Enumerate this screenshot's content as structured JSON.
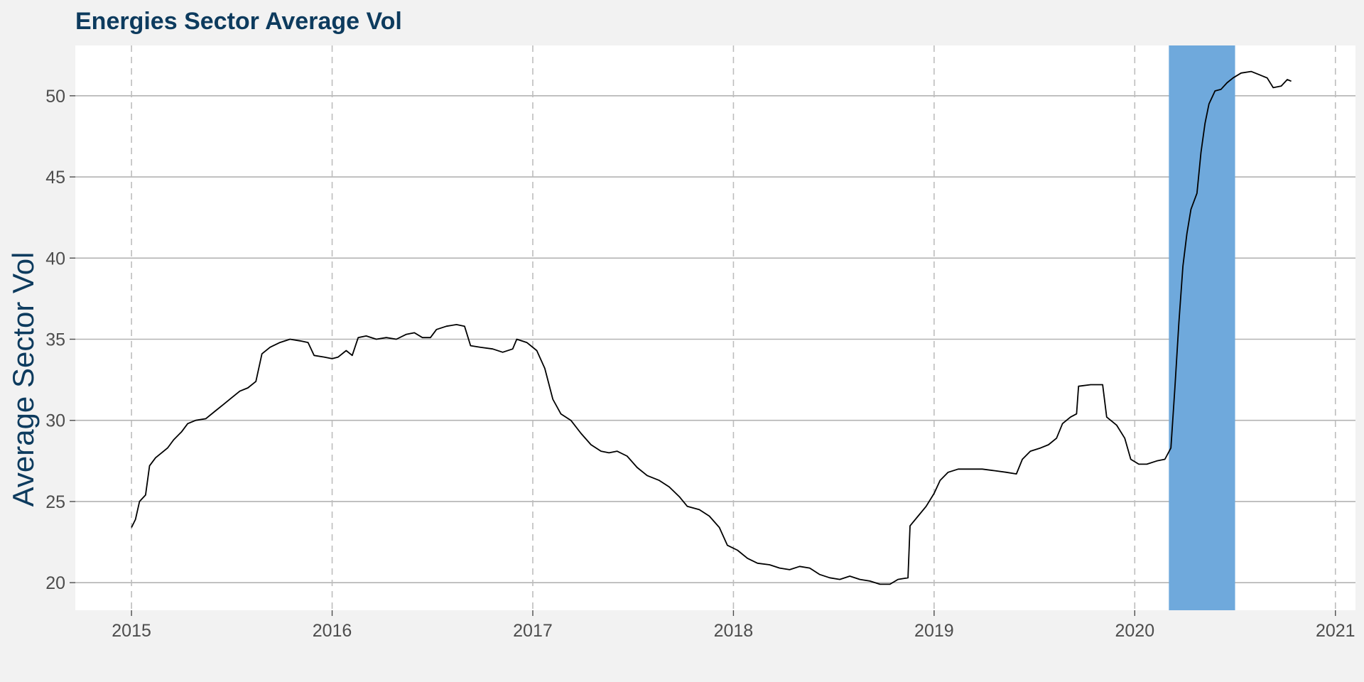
{
  "chart_data": {
    "type": "line",
    "title": "Energies Sector Average Vol",
    "xlabel": "",
    "ylabel": "Average Sector Vol",
    "xlim": [
      2014.72,
      2021.1
    ],
    "ylim": [
      18.3,
      53.1
    ],
    "x_ticks": [
      2015,
      2016,
      2017,
      2018,
      2019,
      2020,
      2021
    ],
    "x_tick_labels": [
      "2015",
      "2016",
      "2017",
      "2018",
      "2019",
      "2020",
      "2021"
    ],
    "y_ticks": [
      20,
      25,
      30,
      35,
      40,
      45,
      50
    ],
    "y_tick_labels": [
      "20",
      "25",
      "30",
      "35",
      "40",
      "45",
      "50"
    ],
    "grid": true,
    "highlight_band": {
      "x_start": 2020.17,
      "x_end": 2020.5,
      "color": "#6fa9dc"
    },
    "colors": {
      "title": "#0d3b5e",
      "ylabel": "#0d3b5e",
      "line": "#000000",
      "panel_background": "#ffffff",
      "plot_background": "#f2f2f2",
      "grid_major_y": "#b3b3b3",
      "grid_major_x": "#bdbdbd"
    },
    "series": [
      {
        "values": [
          [
            2015.0,
            23.4
          ],
          [
            2015.02,
            23.9
          ],
          [
            2015.04,
            25.0
          ],
          [
            2015.07,
            25.4
          ],
          [
            2015.09,
            27.2
          ],
          [
            2015.12,
            27.7
          ],
          [
            2015.15,
            28.0
          ],
          [
            2015.18,
            28.3
          ],
          [
            2015.21,
            28.8
          ],
          [
            2015.25,
            29.3
          ],
          [
            2015.28,
            29.8
          ],
          [
            2015.32,
            30.0
          ],
          [
            2015.37,
            30.1
          ],
          [
            2015.42,
            30.6
          ],
          [
            2015.46,
            31.0
          ],
          [
            2015.5,
            31.4
          ],
          [
            2015.54,
            31.8
          ],
          [
            2015.58,
            32.0
          ],
          [
            2015.62,
            32.4
          ],
          [
            2015.65,
            34.1
          ],
          [
            2015.69,
            34.5
          ],
          [
            2015.74,
            34.8
          ],
          [
            2015.79,
            35.0
          ],
          [
            2015.84,
            34.9
          ],
          [
            2015.88,
            34.8
          ],
          [
            2015.91,
            34.0
          ],
          [
            2015.96,
            33.9
          ],
          [
            2016.0,
            33.8
          ],
          [
            2016.03,
            33.9
          ],
          [
            2016.07,
            34.3
          ],
          [
            2016.1,
            34.0
          ],
          [
            2016.13,
            35.1
          ],
          [
            2016.17,
            35.2
          ],
          [
            2016.22,
            35.0
          ],
          [
            2016.27,
            35.1
          ],
          [
            2016.32,
            35.0
          ],
          [
            2016.37,
            35.3
          ],
          [
            2016.41,
            35.4
          ],
          [
            2016.45,
            35.1
          ],
          [
            2016.49,
            35.1
          ],
          [
            2016.52,
            35.6
          ],
          [
            2016.57,
            35.8
          ],
          [
            2016.62,
            35.9
          ],
          [
            2016.66,
            35.8
          ],
          [
            2016.69,
            34.6
          ],
          [
            2016.74,
            34.5
          ],
          [
            2016.8,
            34.4
          ],
          [
            2016.85,
            34.2
          ],
          [
            2016.9,
            34.4
          ],
          [
            2016.92,
            35.0
          ],
          [
            2016.97,
            34.8
          ],
          [
            2017.02,
            34.3
          ],
          [
            2017.06,
            33.2
          ],
          [
            2017.1,
            31.3
          ],
          [
            2017.14,
            30.4
          ],
          [
            2017.19,
            30.0
          ],
          [
            2017.24,
            29.2
          ],
          [
            2017.29,
            28.5
          ],
          [
            2017.34,
            28.1
          ],
          [
            2017.38,
            28.0
          ],
          [
            2017.42,
            28.1
          ],
          [
            2017.47,
            27.8
          ],
          [
            2017.52,
            27.1
          ],
          [
            2017.57,
            26.6
          ],
          [
            2017.63,
            26.3
          ],
          [
            2017.68,
            25.9
          ],
          [
            2017.73,
            25.3
          ],
          [
            2017.77,
            24.7
          ],
          [
            2017.83,
            24.5
          ],
          [
            2017.88,
            24.1
          ],
          [
            2017.93,
            23.4
          ],
          [
            2017.97,
            22.3
          ],
          [
            2018.02,
            22.0
          ],
          [
            2018.07,
            21.5
          ],
          [
            2018.12,
            21.2
          ],
          [
            2018.18,
            21.1
          ],
          [
            2018.23,
            20.9
          ],
          [
            2018.28,
            20.8
          ],
          [
            2018.33,
            21.0
          ],
          [
            2018.38,
            20.9
          ],
          [
            2018.43,
            20.5
          ],
          [
            2018.48,
            20.3
          ],
          [
            2018.53,
            20.2
          ],
          [
            2018.58,
            20.4
          ],
          [
            2018.63,
            20.2
          ],
          [
            2018.68,
            20.1
          ],
          [
            2018.73,
            19.9
          ],
          [
            2018.78,
            19.9
          ],
          [
            2018.82,
            20.2
          ],
          [
            2018.87,
            20.3
          ],
          [
            2018.88,
            23.5
          ],
          [
            2018.92,
            24.1
          ],
          [
            2018.96,
            24.7
          ],
          [
            2019.0,
            25.5
          ],
          [
            2019.03,
            26.3
          ],
          [
            2019.07,
            26.8
          ],
          [
            2019.12,
            27.0
          ],
          [
            2019.18,
            27.0
          ],
          [
            2019.24,
            27.0
          ],
          [
            2019.3,
            26.9
          ],
          [
            2019.36,
            26.8
          ],
          [
            2019.41,
            26.7
          ],
          [
            2019.44,
            27.6
          ],
          [
            2019.48,
            28.1
          ],
          [
            2019.53,
            28.3
          ],
          [
            2019.57,
            28.5
          ],
          [
            2019.61,
            28.9
          ],
          [
            2019.64,
            29.8
          ],
          [
            2019.68,
            30.2
          ],
          [
            2019.71,
            30.4
          ],
          [
            2019.72,
            32.1
          ],
          [
            2019.78,
            32.2
          ],
          [
            2019.84,
            32.2
          ],
          [
            2019.86,
            30.2
          ],
          [
            2019.91,
            29.7
          ],
          [
            2019.95,
            28.9
          ],
          [
            2019.98,
            27.6
          ],
          [
            2020.02,
            27.3
          ],
          [
            2020.06,
            27.3
          ],
          [
            2020.11,
            27.5
          ],
          [
            2020.15,
            27.6
          ],
          [
            2020.18,
            28.3
          ],
          [
            2020.2,
            32.0
          ],
          [
            2020.22,
            36.0
          ],
          [
            2020.24,
            39.5
          ],
          [
            2020.26,
            41.5
          ],
          [
            2020.28,
            43.0
          ],
          [
            2020.31,
            44.0
          ],
          [
            2020.33,
            46.5
          ],
          [
            2020.35,
            48.3
          ],
          [
            2020.37,
            49.5
          ],
          [
            2020.4,
            50.3
          ],
          [
            2020.43,
            50.4
          ],
          [
            2020.46,
            50.8
          ],
          [
            2020.49,
            51.1
          ],
          [
            2020.53,
            51.4
          ],
          [
            2020.58,
            51.5
          ],
          [
            2020.62,
            51.3
          ],
          [
            2020.66,
            51.1
          ],
          [
            2020.69,
            50.5
          ],
          [
            2020.73,
            50.6
          ],
          [
            2020.76,
            51.0
          ],
          [
            2020.78,
            50.9
          ]
        ]
      }
    ]
  }
}
